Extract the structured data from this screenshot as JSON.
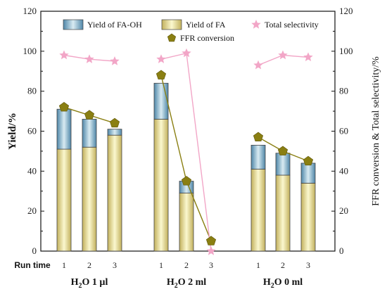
{
  "chart_data": {
    "type": "bar",
    "groups": [
      {
        "label_main": "H",
        "label_sub": "2",
        "label_rest": "O 1 µl",
        "runs": [
          "1",
          "2",
          "3"
        ]
      },
      {
        "label_main": "H",
        "label_sub": "2",
        "label_rest": "O 2 ml",
        "runs": [
          "1",
          "2",
          "3"
        ]
      },
      {
        "label_main": "H",
        "label_sub": "2",
        "label_rest": "O 0 ml",
        "runs": [
          "1",
          "2",
          "3"
        ]
      }
    ],
    "run_label": "Run time",
    "ylabel_left": "Yield/%",
    "ylabel_right": "FFR conversion & Total selectivity/%",
    "ylim": [
      0,
      120
    ],
    "yticks": [
      0,
      20,
      40,
      60,
      80,
      100,
      120
    ],
    "series": [
      {
        "name": "Yield of FA-OH",
        "kind": "stacked-bar-top",
        "color_top": "#4e86a8",
        "color_mid": "#cfe1ea",
        "values": [
          20,
          14,
          3,
          18,
          6,
          0,
          12,
          11,
          10
        ]
      },
      {
        "name": "Yield of FA",
        "kind": "stacked-bar-bottom",
        "color_top": "#fbf7c8",
        "color_mid": "#c9b866",
        "values": [
          51,
          52,
          58,
          66,
          29,
          0,
          41,
          38,
          34
        ]
      },
      {
        "name": "FFR conversion",
        "kind": "line-marker",
        "color": "#8a7f12",
        "marker": "pentagon",
        "values": [
          72,
          68,
          64,
          88,
          35,
          5,
          57,
          50,
          45
        ]
      },
      {
        "name": "Total selectivity",
        "kind": "line-marker",
        "color": "#f2a6c7",
        "marker": "star",
        "values": [
          98,
          96,
          95,
          96,
          99,
          0,
          93,
          98,
          97
        ]
      }
    ]
  }
}
